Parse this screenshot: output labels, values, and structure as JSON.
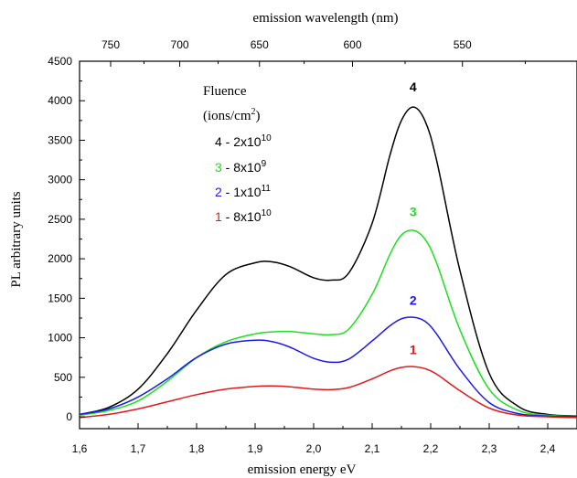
{
  "chart_data": {
    "type": "line",
    "title": "",
    "xlabel": "emission energy eV",
    "ylabel": "PL arbitrary units",
    "top_xlabel": "emission wavelength (nm)",
    "xlim": [
      1.6,
      2.45
    ],
    "ylim": [
      -150,
      4500
    ],
    "xticks": [
      1.6,
      1.7,
      1.8,
      1.9,
      2.0,
      2.1,
      2.2,
      2.3,
      2.4
    ],
    "xtick_labels": [
      "1,6",
      "1,7",
      "1,8",
      "1,9",
      "2,0",
      "2,1",
      "2,2",
      "2,3",
      "2,4"
    ],
    "yticks": [
      0,
      500,
      1000,
      1500,
      2000,
      2500,
      3000,
      3500,
      4000,
      4500
    ],
    "ytick_labels": [
      "0",
      "500",
      "1000",
      "1500",
      "2000",
      "2500",
      "3000",
      "3500",
      "4000",
      "4500"
    ],
    "top_xticks": [
      750,
      700,
      650,
      600,
      550
    ],
    "top_xtick_labels": [
      "750",
      "700",
      "650",
      "600",
      "550"
    ],
    "grid": false,
    "legend": {
      "title_line1": "Fluence",
      "title_line2_pre": "(ions/cm",
      "title_line2_sup": "2",
      "title_line2_post": ")",
      "placement": "top-left",
      "entries": [
        {
          "num": "4",
          "pre": " - 2x10",
          "exp": "10",
          "color": "#000000"
        },
        {
          "num": "3",
          "pre": " - 8x10",
          "exp": "9",
          "color": "#1ee01e"
        },
        {
          "num": "2",
          "pre": " - 1x10",
          "exp": "11",
          "color": "#1a1ae8"
        },
        {
          "num": "1",
          "pre": " - 8x10",
          "exp": "10",
          "color": "#e01a1a"
        }
      ]
    },
    "series": [
      {
        "name": "4",
        "color": "#000000",
        "x": [
          1.6,
          1.65,
          1.7,
          1.75,
          1.8,
          1.85,
          1.9,
          1.93,
          1.96,
          2.0,
          2.03,
          2.06,
          2.1,
          2.13,
          2.15,
          2.17,
          2.19,
          2.21,
          2.25,
          2.3,
          2.35,
          2.4,
          2.45
        ],
        "y": [
          30,
          120,
          350,
          800,
          1350,
          1800,
          1950,
          1960,
          1900,
          1760,
          1730,
          1820,
          2450,
          3300,
          3750,
          3920,
          3750,
          3250,
          1850,
          550,
          130,
          30,
          10
        ]
      },
      {
        "name": "3",
        "color": "#1ee01e",
        "x": [
          1.6,
          1.65,
          1.7,
          1.75,
          1.8,
          1.85,
          1.9,
          1.93,
          1.96,
          2.0,
          2.03,
          2.06,
          2.1,
          2.13,
          2.15,
          2.17,
          2.19,
          2.21,
          2.25,
          2.3,
          2.35,
          2.4,
          2.45
        ],
        "y": [
          20,
          80,
          200,
          450,
          750,
          950,
          1050,
          1075,
          1080,
          1050,
          1040,
          1110,
          1550,
          2050,
          2300,
          2360,
          2250,
          1950,
          1100,
          350,
          80,
          20,
          5
        ]
      },
      {
        "name": "2",
        "color": "#1a1ae8",
        "x": [
          1.6,
          1.65,
          1.7,
          1.75,
          1.8,
          1.85,
          1.9,
          1.93,
          1.96,
          2.0,
          2.03,
          2.06,
          2.1,
          2.13,
          2.15,
          2.17,
          2.19,
          2.21,
          2.25,
          2.3,
          2.35,
          2.4,
          2.45
        ],
        "y": [
          30,
          100,
          250,
          480,
          750,
          920,
          970,
          950,
          880,
          740,
          690,
          730,
          960,
          1150,
          1240,
          1260,
          1210,
          1050,
          600,
          180,
          40,
          10,
          5
        ]
      },
      {
        "name": "1",
        "color": "#e01a1a",
        "x": [
          1.6,
          1.65,
          1.7,
          1.75,
          1.8,
          1.85,
          1.9,
          1.93,
          1.96,
          2.0,
          2.03,
          2.06,
          2.1,
          2.13,
          2.15,
          2.17,
          2.19,
          2.21,
          2.25,
          2.3,
          2.35,
          2.4,
          2.45
        ],
        "y": [
          -10,
          30,
          100,
          190,
          280,
          350,
          385,
          390,
          380,
          350,
          345,
          370,
          480,
          580,
          625,
          635,
          610,
          540,
          330,
          110,
          20,
          0,
          -10
        ]
      }
    ],
    "annotations": [
      {
        "text": "4",
        "x": 2.17,
        "y": 4120,
        "color": "#000000"
      },
      {
        "text": "3",
        "x": 2.17,
        "y": 2540,
        "color": "#1ee01e"
      },
      {
        "text": "2",
        "x": 2.17,
        "y": 1420,
        "color": "#1a1ae8"
      },
      {
        "text": "1",
        "x": 2.17,
        "y": 790,
        "color": "#e01a1a"
      }
    ]
  }
}
